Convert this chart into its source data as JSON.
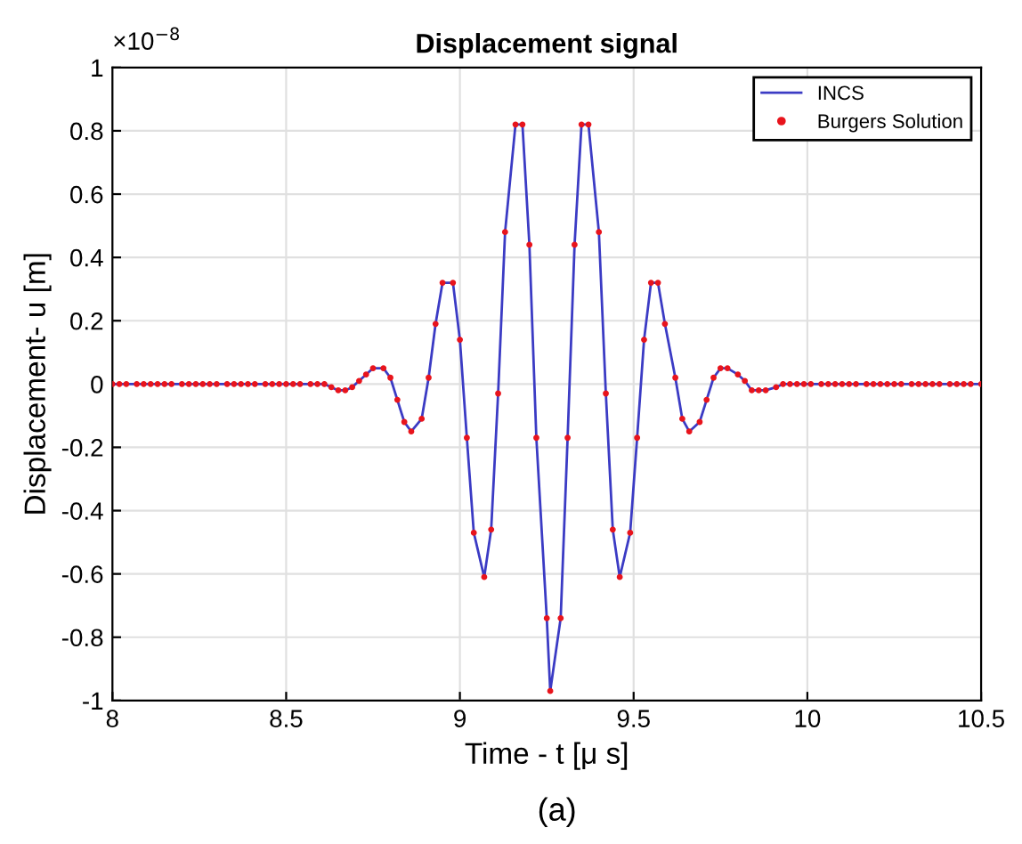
{
  "chart_data": {
    "type": "line",
    "title": "Displacement signal",
    "xlabel": "Time - t [μ s]",
    "ylabel": "Displacement- u [m]",
    "annotations": [
      "×10$^{−8}$",
      "(a)"
    ],
    "x": [
      8.0,
      8.02,
      8.04,
      8.07,
      8.09,
      8.11,
      8.13,
      8.15,
      8.17,
      8.2,
      8.22,
      8.24,
      8.26,
      8.28,
      8.3,
      8.33,
      8.35,
      8.37,
      8.39,
      8.41,
      8.44,
      8.46,
      8.48,
      8.5,
      8.52,
      8.54,
      8.57,
      8.59,
      8.61,
      8.63,
      8.65,
      8.67,
      8.69,
      8.71,
      8.73,
      8.75,
      8.78,
      8.8,
      8.82,
      8.84,
      8.86,
      8.89,
      8.91,
      8.93,
      8.95,
      8.98,
      9.0,
      9.02,
      9.04,
      9.07,
      9.09,
      9.11,
      9.13,
      9.16,
      9.18,
      9.2,
      9.22,
      9.25,
      9.26,
      9.29,
      9.31,
      9.33,
      9.35,
      9.37,
      9.4,
      9.42,
      9.44,
      9.46,
      9.49,
      9.51,
      9.53,
      9.55,
      9.57,
      9.59,
      9.62,
      9.64,
      9.66,
      9.69,
      9.71,
      9.73,
      9.75,
      9.77,
      9.8,
      9.82,
      9.84,
      9.86,
      9.88,
      9.91,
      9.93,
      9.95,
      9.97,
      9.99,
      10.01,
      10.04,
      10.06,
      10.08,
      10.1,
      10.12,
      10.14,
      10.17,
      10.19,
      10.21,
      10.23,
      10.25,
      10.27,
      10.3,
      10.32,
      10.34,
      10.36,
      10.38,
      10.41,
      10.43,
      10.45,
      10.47,
      10.5
    ],
    "series": [
      {
        "name": "INCS",
        "color": "#3b3bc4",
        "marker": "none",
        "values": [
          0,
          0,
          0,
          0,
          0,
          0,
          0,
          0,
          0,
          0,
          0,
          0,
          0,
          0,
          0,
          0,
          0,
          0,
          0,
          0,
          0,
          0,
          0,
          0,
          0,
          0,
          0,
          0,
          0,
          -0.01,
          -0.02,
          -0.02,
          -0.01,
          0.01,
          0.03,
          0.05,
          0.05,
          0.02,
          -0.05,
          -0.12,
          -0.15,
          -0.11,
          0.02,
          0.19,
          0.32,
          0.32,
          0.14,
          -0.17,
          -0.47,
          -0.61,
          -0.46,
          -0.03,
          0.48,
          0.82,
          0.82,
          0.44,
          -0.17,
          -0.74,
          -0.97,
          -0.74,
          -0.17,
          0.44,
          0.82,
          0.82,
          0.48,
          -0.03,
          -0.46,
          -0.61,
          -0.47,
          -0.17,
          0.14,
          0.32,
          0.32,
          0.19,
          0.02,
          -0.11,
          -0.15,
          -0.12,
          -0.05,
          0.02,
          0.05,
          0.05,
          0.03,
          0.01,
          -0.02,
          -0.02,
          -0.02,
          -0.01,
          0,
          0,
          0,
          0,
          0,
          0,
          0,
          0,
          0,
          0,
          0,
          0,
          0,
          0,
          0,
          0,
          0,
          0,
          0,
          0,
          0,
          0,
          0,
          0,
          0,
          0,
          0
        ]
      },
      {
        "name": "Burgers Solution",
        "type": "scatter",
        "color": "#e8141c",
        "marker": "circle",
        "values": [
          0,
          0,
          0,
          0,
          0,
          0,
          0,
          0,
          0,
          0,
          0,
          0,
          0,
          0,
          0,
          0,
          0,
          0,
          0,
          0,
          0,
          0,
          0,
          0,
          0,
          0,
          0,
          0,
          0,
          -0.01,
          -0.02,
          -0.02,
          -0.01,
          0.01,
          0.03,
          0.05,
          0.05,
          0.02,
          -0.05,
          -0.12,
          -0.15,
          -0.11,
          0.02,
          0.19,
          0.32,
          0.32,
          0.14,
          -0.17,
          -0.47,
          -0.61,
          -0.46,
          -0.03,
          0.48,
          0.82,
          0.82,
          0.44,
          -0.17,
          -0.74,
          -0.97,
          -0.74,
          -0.17,
          0.44,
          0.82,
          0.82,
          0.48,
          -0.03,
          -0.46,
          -0.61,
          -0.47,
          -0.17,
          0.14,
          0.32,
          0.32,
          0.19,
          0.02,
          -0.11,
          -0.15,
          -0.12,
          -0.05,
          0.02,
          0.05,
          0.05,
          0.03,
          0.01,
          -0.02,
          -0.02,
          -0.02,
          -0.01,
          0,
          0,
          0,
          0,
          0,
          0,
          0,
          0,
          0,
          0,
          0,
          0,
          0,
          0,
          0,
          0,
          0,
          0,
          0,
          0,
          0,
          0,
          0,
          0,
          0,
          0,
          0
        ]
      }
    ],
    "xlim": [
      8,
      10.5
    ],
    "xticks": [
      8,
      8.5,
      9,
      9.5,
      10,
      10.5
    ],
    "ylim": [
      -1,
      1
    ],
    "yticks": [
      -1,
      -0.8,
      -0.6,
      -0.4,
      -0.2,
      0,
      0.2,
      0.4,
      0.6,
      0.8,
      1
    ],
    "grid": true,
    "legend": "top right"
  }
}
